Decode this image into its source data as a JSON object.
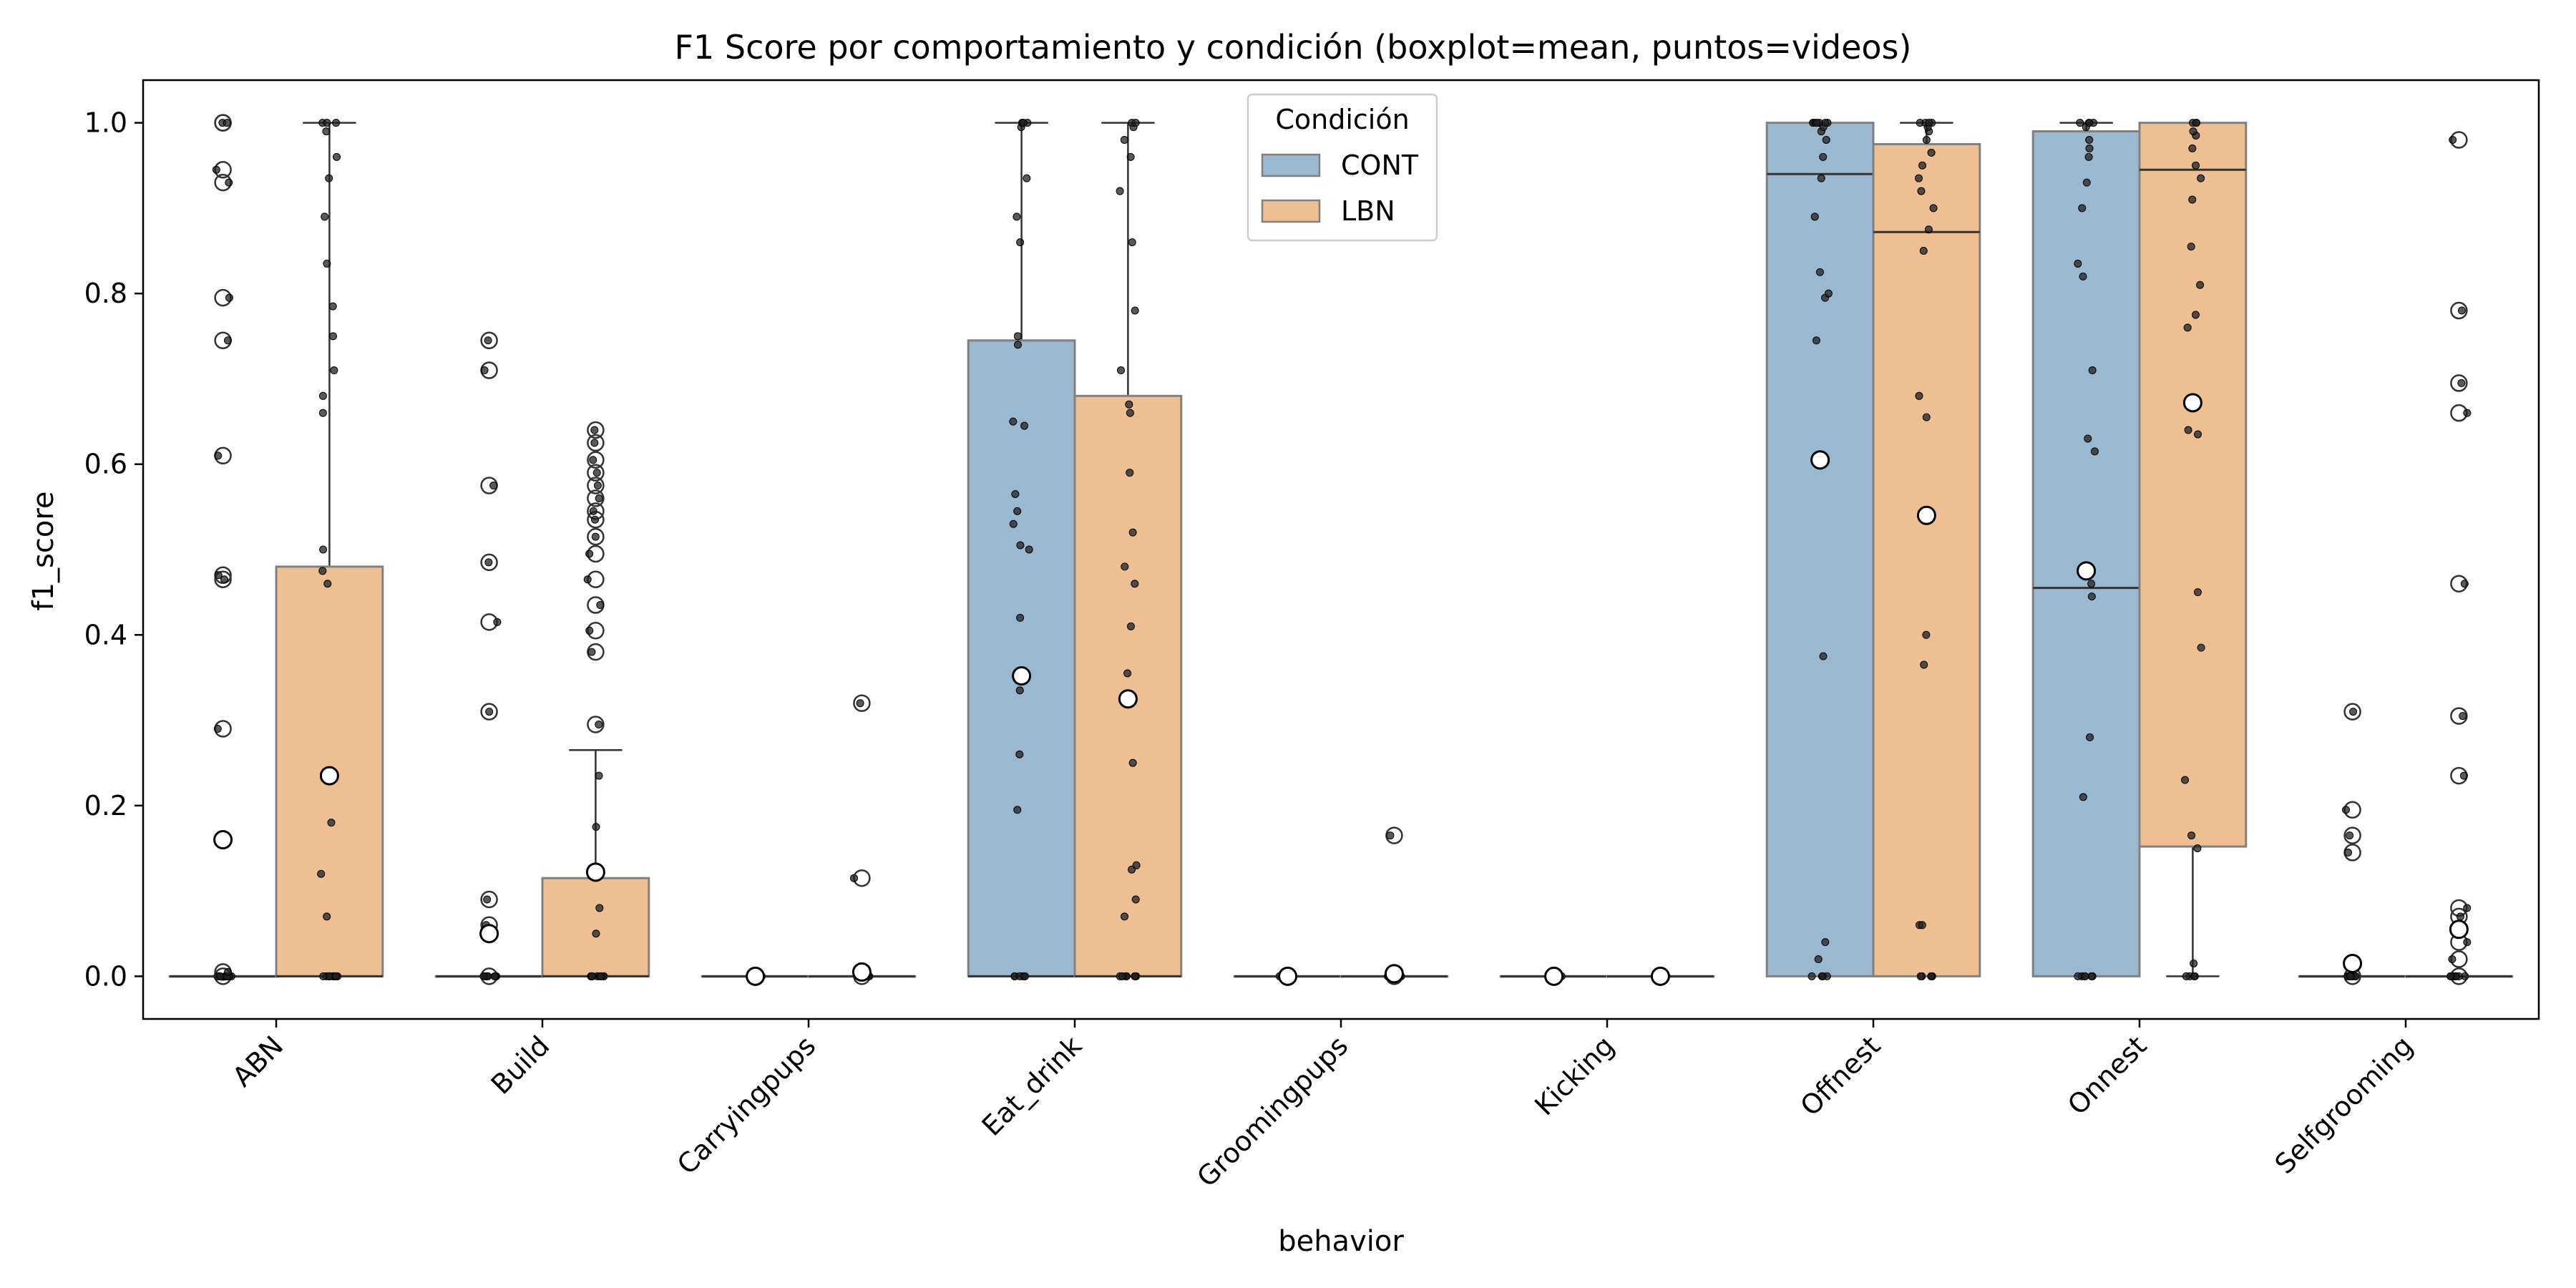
{
  "chart_data": {
    "type": "box",
    "title": "F1 Score por comportamiento y condición (boxplot=mean, puntos=videos)",
    "xlabel": "behavior",
    "ylabel": "f1_score",
    "ylim": [
      -0.05,
      1.05
    ],
    "yticks": [
      "0.0",
      "0.2",
      "0.4",
      "0.6",
      "0.8",
      "1.0"
    ],
    "categories": [
      "ABN",
      "Build",
      "Carryingpups",
      "Eat_drink",
      "Groomingpups",
      "Kicking",
      "Offnest",
      "Onnest",
      "Selfgrooming"
    ],
    "legend": {
      "title": "Condición",
      "placement": "upper-center"
    },
    "colors": {
      "CONT": "#9ab9d1",
      "LBN": "#efbf94",
      "edge": "#808080"
    },
    "series": [
      {
        "name": "CONT",
        "boxes": [
          {
            "q1": 0,
            "median": 0,
            "q3": 0,
            "whislo": 0,
            "whishi": 0,
            "mean": 0.16,
            "fliers": [
              0.0,
              0.005,
              0.16,
              0.29,
              0.465,
              0.47,
              0.61,
              0.745,
              0.795,
              0.93,
              0.945,
              1.0,
              1.0
            ]
          },
          {
            "q1": 0,
            "median": 0,
            "q3": 0,
            "whislo": 0,
            "whishi": 0,
            "mean": 0.05,
            "fliers": [
              0.0,
              0.05,
              0.06,
              0.09,
              0.31,
              0.415,
              0.485,
              0.575,
              0.71,
              0.745
            ]
          },
          {
            "q1": 0,
            "median": 0,
            "q3": 0,
            "whislo": 0,
            "whishi": 0,
            "mean": 0.0,
            "fliers": [
              0.0
            ]
          },
          {
            "q1": 0,
            "median": 0,
            "q3": 0.745,
            "whislo": 0,
            "whishi": 1.0,
            "mean": 0.352,
            "fliers": []
          },
          {
            "q1": 0,
            "median": 0,
            "q3": 0,
            "whislo": 0,
            "whishi": 0,
            "mean": 0.0,
            "fliers": [
              0.0
            ]
          },
          {
            "q1": 0,
            "median": 0,
            "q3": 0,
            "whislo": 0,
            "whishi": 0,
            "mean": 0.0,
            "fliers": [
              0.0
            ]
          },
          {
            "q1": 0,
            "median": 0.94,
            "q3": 1.0,
            "whislo": 0,
            "whishi": 1.0,
            "mean": 0.605,
            "fliers": []
          },
          {
            "q1": 0,
            "median": 0.455,
            "q3": 0.99,
            "whislo": 0,
            "whishi": 1.0,
            "mean": 0.475,
            "fliers": []
          },
          {
            "q1": 0,
            "median": 0,
            "q3": 0,
            "whislo": 0,
            "whishi": 0,
            "mean": 0.015,
            "fliers": [
              0.0,
              0.145,
              0.165,
              0.195,
              0.31
            ]
          }
        ],
        "points": [
          [
            0,
            0,
            0,
            0,
            0,
            0,
            0,
            0,
            0,
            0,
            0,
            0,
            0.005,
            0.29,
            0.465,
            0.47,
            0.61,
            0.745,
            0.795,
            0.93,
            0.945,
            1.0,
            1.0
          ],
          [
            0,
            0,
            0,
            0,
            0,
            0,
            0,
            0,
            0,
            0.05,
            0.06,
            0.09,
            0.31,
            0.415,
            0.485,
            0.575,
            0.71,
            0.745
          ],
          [
            0,
            0,
            0,
            0,
            0,
            0
          ],
          [
            0,
            0,
            0,
            0,
            0,
            0,
            0.195,
            0.26,
            0.335,
            0.42,
            0.5,
            0.505,
            0.53,
            0.545,
            0.565,
            0.645,
            0.65,
            0.74,
            0.75,
            0.86,
            0.89,
            0.935,
            0.995,
            1.0,
            1.0,
            1.0
          ],
          [
            0,
            0,
            0,
            0,
            0
          ],
          [
            0,
            0,
            0,
            0,
            0,
            0
          ],
          [
            0,
            0,
            0,
            0,
            0,
            0.02,
            0.04,
            0.375,
            0.745,
            0.795,
            0.8,
            0.825,
            0.89,
            0.935,
            0.96,
            0.98,
            0.99,
            0.995,
            1.0,
            1.0,
            1.0,
            1.0,
            1.0,
            1.0,
            1.0
          ],
          [
            0,
            0,
            0,
            0,
            0,
            0,
            0.21,
            0.28,
            0.445,
            0.46,
            0.615,
            0.63,
            0.71,
            0.82,
            0.835,
            0.9,
            0.93,
            0.96,
            0.97,
            0.98,
            0.995,
            1.0,
            1.0,
            1.0,
            1.0
          ],
          [
            0,
            0,
            0,
            0,
            0,
            0,
            0,
            0,
            0.145,
            0.165,
            0.195,
            0.31
          ]
        ]
      },
      {
        "name": "LBN",
        "boxes": [
          {
            "q1": 0,
            "median": 0,
            "q3": 0.48,
            "whislo": 0,
            "whishi": 1.0,
            "mean": 0.235,
            "fliers": []
          },
          {
            "q1": 0,
            "median": 0,
            "q3": 0.115,
            "whislo": 0,
            "whishi": 0.265,
            "mean": 0.122,
            "fliers": [
              0.295,
              0.38,
              0.405,
              0.435,
              0.465,
              0.495,
              0.515,
              0.535,
              0.545,
              0.56,
              0.575,
              0.59,
              0.605,
              0.625,
              0.64
            ]
          },
          {
            "q1": 0,
            "median": 0,
            "q3": 0,
            "whislo": 0,
            "whishi": 0,
            "mean": 0.005,
            "fliers": [
              0.0,
              0.005,
              0.115,
              0.32
            ]
          },
          {
            "q1": 0,
            "median": 0,
            "q3": 0.68,
            "whislo": 0,
            "whishi": 1.0,
            "mean": 0.325,
            "fliers": []
          },
          {
            "q1": 0,
            "median": 0,
            "q3": 0,
            "whislo": 0,
            "whishi": 0,
            "mean": 0.003,
            "fliers": [
              0.0,
              0.003,
              0.165
            ]
          },
          {
            "q1": 0,
            "median": 0,
            "q3": 0,
            "whislo": 0,
            "whishi": 0,
            "mean": 0.0,
            "fliers": [
              0.0
            ]
          },
          {
            "q1": 0,
            "median": 0.872,
            "q3": 0.975,
            "whislo": 0,
            "whishi": 1.0,
            "mean": 0.54,
            "fliers": []
          },
          {
            "q1": 0.152,
            "median": 0.945,
            "q3": 1.0,
            "whislo": 0,
            "whishi": 1.0,
            "mean": 0.672,
            "fliers": []
          },
          {
            "q1": 0,
            "median": 0,
            "q3": 0,
            "whislo": 0,
            "whishi": 0,
            "mean": 0.055,
            "fliers": [
              0.0,
              0.02,
              0.04,
              0.055,
              0.07,
              0.08,
              0.235,
              0.305,
              0.46,
              0.66,
              0.695,
              0.78,
              0.98
            ]
          }
        ],
        "points": [
          [
            0,
            0,
            0,
            0,
            0,
            0,
            0,
            0,
            0,
            0,
            0.07,
            0.12,
            0.18,
            0.46,
            0.475,
            0.5,
            0.66,
            0.68,
            0.71,
            0.75,
            0.785,
            0.835,
            0.89,
            0.935,
            0.96,
            0.99,
            1.0,
            1.0,
            1.0
          ],
          [
            0,
            0,
            0,
            0,
            0,
            0,
            0,
            0,
            0,
            0,
            0.05,
            0.08,
            0.175,
            0.235,
            0.295,
            0.38,
            0.405,
            0.435,
            0.465,
            0.495,
            0.515,
            0.535,
            0.545,
            0.56,
            0.575,
            0.59,
            0.605,
            0.625,
            0.64
          ],
          [
            0,
            0,
            0,
            0,
            0,
            0,
            0,
            0.005,
            0.115,
            0.32
          ],
          [
            0,
            0,
            0,
            0,
            0,
            0,
            0,
            0,
            0.07,
            0.09,
            0.125,
            0.13,
            0.25,
            0.355,
            0.41,
            0.46,
            0.48,
            0.52,
            0.59,
            0.66,
            0.67,
            0.71,
            0.78,
            0.86,
            0.92,
            0.96,
            0.98,
            0.995,
            1.0,
            1.0
          ],
          [
            0,
            0,
            0,
            0,
            0,
            0,
            0.003,
            0.165
          ],
          [
            0,
            0,
            0,
            0,
            0,
            0
          ],
          [
            0,
            0,
            0,
            0,
            0,
            0.06,
            0.06,
            0.365,
            0.4,
            0.655,
            0.68,
            0.85,
            0.875,
            0.9,
            0.92,
            0.935,
            0.95,
            0.965,
            0.98,
            0.99,
            0.995,
            1.0,
            1.0,
            1.0,
            1.0
          ],
          [
            0,
            0,
            0,
            0,
            0.015,
            0.15,
            0.165,
            0.23,
            0.385,
            0.45,
            0.635,
            0.64,
            0.76,
            0.775,
            0.81,
            0.855,
            0.91,
            0.935,
            0.95,
            0.97,
            0.985,
            0.99,
            1.0,
            1.0,
            1.0
          ],
          [
            0,
            0,
            0,
            0,
            0,
            0,
            0,
            0,
            0.02,
            0.04,
            0.055,
            0.07,
            0.08,
            0.235,
            0.305,
            0.46,
            0.66,
            0.695,
            0.78,
            0.98
          ]
        ]
      }
    ]
  }
}
